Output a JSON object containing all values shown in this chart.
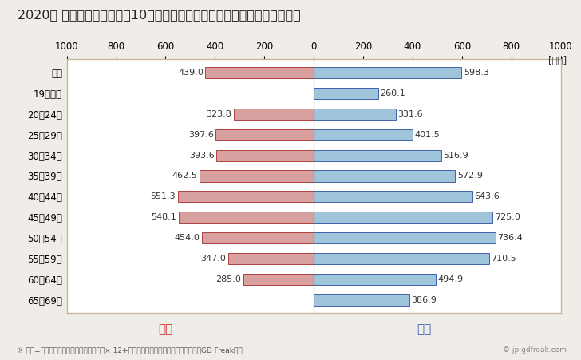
{
  "title": "2020年 民間企業（従業者数10人以上）フルタイム労働者の男女別平均年収",
  "unit_label": "[万円]",
  "footnote": "※ 年収=「きまって支給する現金給与額」× 12+「年間賞与その他特別給与額」としてGD Freak推計",
  "watermark": "© jp.gdfreak.com",
  "categories": [
    "全体",
    "19歳以下",
    "20〜24歳",
    "25〜29歳",
    "30〜34歳",
    "35〜39歳",
    "40〜44歳",
    "45〜49歳",
    "50〜54歳",
    "55〜59歳",
    "60〜64歳",
    "65〜69歳"
  ],
  "female_values": [
    439.0,
    0.0,
    323.8,
    397.6,
    393.6,
    462.5,
    551.3,
    548.1,
    454.0,
    347.0,
    285.0,
    0.0
  ],
  "male_values": [
    598.3,
    260.1,
    331.6,
    401.5,
    516.9,
    572.9,
    643.6,
    725.0,
    736.4,
    710.5,
    494.9,
    386.9
  ],
  "female_color": "#d9a0a0",
  "male_color": "#a0c4d9",
  "female_border_color": "#b04040",
  "male_border_color": "#4060b0",
  "female_label": "女性",
  "male_label": "男性",
  "female_label_color": "#cc3333",
  "male_label_color": "#3366bb",
  "xlim": [
    -1000,
    1000
  ],
  "xticks": [
    -1000,
    -800,
    -600,
    -400,
    -200,
    0,
    200,
    400,
    600,
    800,
    1000
  ],
  "xticklabels": [
    "1000",
    "800",
    "600",
    "400",
    "200",
    "0",
    "200",
    "400",
    "600",
    "800",
    "1000"
  ],
  "bg_color": "#f0ede8",
  "plot_bg_color": "#ffffff",
  "border_color": "#c8b89a",
  "title_fontsize": 11.5,
  "tick_fontsize": 8.5,
  "value_fontsize": 8,
  "legend_fontsize": 11,
  "footnote_fontsize": 6.5,
  "bar_height": 0.55
}
